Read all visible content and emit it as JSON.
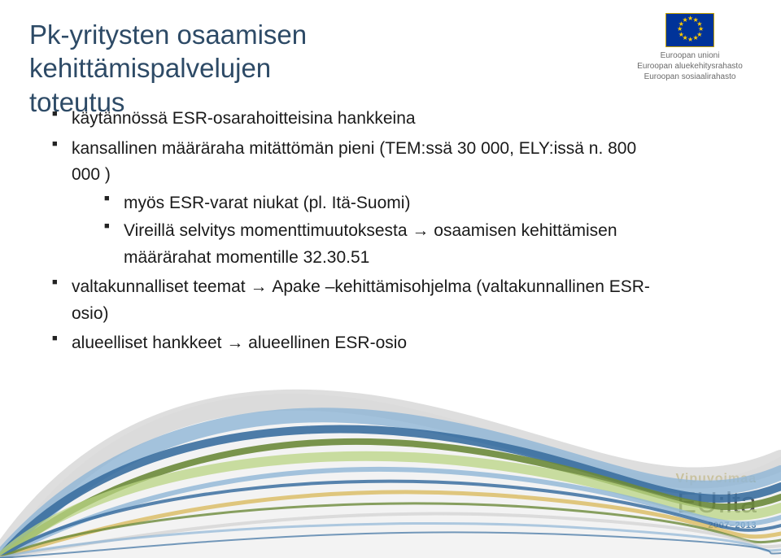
{
  "title_line1": "Pk-yritysten osaamisen kehittämispalvelujen",
  "title_line2": "toteutus",
  "title_color": "#2d4a66",
  "bullets": {
    "b1": "käytännössä ESR-osarahoitteisina hankkeina",
    "b2": "kansallinen määräraha mitättömän pieni (TEM:ssä 30 000, ELY:issä n. 800 000 )",
    "b2s1": "myös ESR-varat niukat (pl. Itä-Suomi)",
    "b2s2_a": "Vireillä selvitys momenttimuutoksesta",
    "b2s2_b": "osaamisen kehittämisen määrärahat momentille 32.30.51",
    "b3_a": "valtakunnalliset teemat",
    "b3_b": "Apake –kehittämisohjelma (valtakunnallinen ESR-osio)",
    "b4_a": "alueelliset hankkeet",
    "b4_b": "alueellinen ESR-osio"
  },
  "eu": {
    "l1": "Euroopan unioni",
    "l2": "Euroopan aluekehitysrahasto",
    "l3": "Euroopan sosiaalirahasto"
  },
  "vipu": {
    "top": "Vipuvoimaa",
    "top_color": "#b8a22e",
    "mid": "EU:lta",
    "years": "2007–2013",
    "years_color": "#2d6aa0"
  },
  "arrow": "→",
  "body_color": "#1a1a1a",
  "swoosh_colors": {
    "c1": "#6c8a3a",
    "c2": "#3b6fa0",
    "c3": "#8fb5d6",
    "c4": "#b9d483",
    "c5": "#d0d0d0",
    "c6": "#d6b24a"
  }
}
